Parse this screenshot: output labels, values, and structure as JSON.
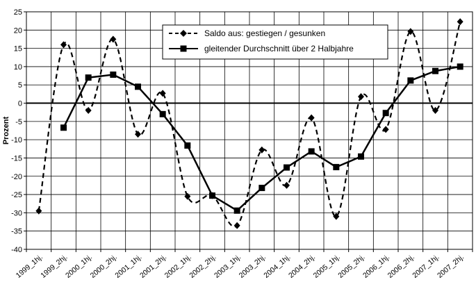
{
  "chart_data": {
    "type": "line",
    "ylabel": "Prozent",
    "xlabel": "",
    "title": "",
    "ylim": [
      -40,
      25
    ],
    "ytick_step": 5,
    "grid": true,
    "legend_position": "top-center",
    "categories": [
      "1999_1hj.",
      "1999_2hj.",
      "2000_1hj.",
      "2000_2hj.",
      "2001_1hj.",
      "2001_2hj.",
      "2002_1hj.",
      "2002_2hj.",
      "2003_1hj.",
      "2003_2hj.",
      "2004_1hj.",
      "2004_2hj.",
      "2005_1hj.",
      "2005_2hj.",
      "2006_1hj.",
      "2006_2hj.",
      "2007_1hj.",
      "2007_2hj."
    ],
    "series": [
      {
        "name": "Saldo aus: gestiegen / gesunken",
        "style": "dashed",
        "marker": "diamond",
        "values": [
          -29.5,
          16.0,
          -2.0,
          17.5,
          -8.5,
          2.7,
          -25.5,
          -25.3,
          -33.5,
          -12.8,
          -22.5,
          -4.0,
          -31.0,
          1.8,
          -7.2,
          19.6,
          -2.0,
          22.3
        ]
      },
      {
        "name": "gleitender Durchschnitt über 2 Halbjahre",
        "style": "solid",
        "marker": "square",
        "values": [
          null,
          -6.7,
          7.0,
          7.8,
          4.5,
          -3.0,
          -11.6,
          -25.3,
          -29.4,
          -23.2,
          -17.6,
          -13.2,
          -17.5,
          -14.6,
          -2.7,
          6.2,
          8.8,
          10.0
        ]
      }
    ]
  }
}
